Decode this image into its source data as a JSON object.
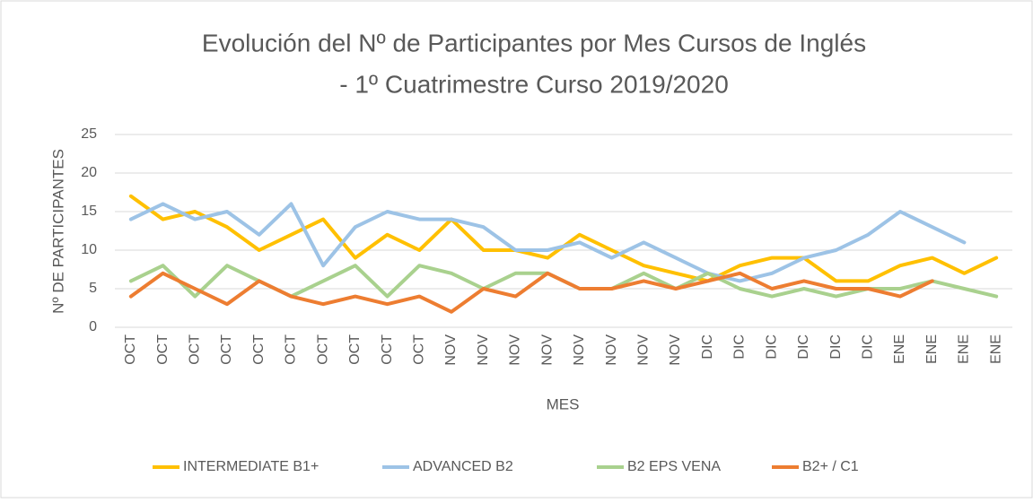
{
  "chart_data": {
    "type": "line",
    "title": "Evolución del Nº de Participantes por Mes Cursos de Inglés",
    "subtitle": "- 1º Cuatrimestre Curso 2019/2020",
    "x_label": "MES",
    "y_label": "Nº DE PARTICIPANTES",
    "categories": [
      "OCT",
      "OCT",
      "OCT",
      "OCT",
      "OCT",
      "OCT",
      "OCT",
      "OCT",
      "OCT",
      "OCT",
      "NOV",
      "NOV",
      "NOV",
      "NOV",
      "NOV",
      "NOV",
      "NOV",
      "NOV",
      "DIC",
      "DIC",
      "DIC",
      "DIC",
      "DIC",
      "DIC",
      "ENE",
      "ENE",
      "ENE",
      "ENE"
    ],
    "series": [
      {
        "name": "INTERMEDIATE B1+",
        "color": "#ffc000",
        "values": [
          17,
          14,
          15,
          13,
          10,
          12,
          14,
          9,
          12,
          10,
          14,
          10,
          10,
          9,
          12,
          10,
          8,
          7,
          6,
          8,
          9,
          9,
          6,
          6,
          8,
          9,
          7,
          9
        ]
      },
      {
        "name": "ADVANCED B2",
        "color": "#9dc3e6",
        "values": [
          14,
          16,
          14,
          15,
          12,
          16,
          8,
          13,
          15,
          14,
          14,
          13,
          10,
          10,
          11,
          9,
          11,
          9,
          7,
          6,
          7,
          9,
          10,
          12,
          15,
          13,
          11,
          null
        ]
      },
      {
        "name": "B2 EPS VENA",
        "color": "#a9d18e",
        "values": [
          6,
          8,
          4,
          8,
          6,
          4,
          6,
          8,
          4,
          8,
          7,
          5,
          7,
          7,
          5,
          5,
          7,
          5,
          7,
          5,
          4,
          5,
          4,
          5,
          5,
          6,
          5,
          4
        ]
      },
      {
        "name": "B2+ / C1",
        "color": "#ed7d31",
        "values": [
          4,
          7,
          5,
          3,
          6,
          4,
          3,
          4,
          3,
          4,
          2,
          5,
          4,
          7,
          5,
          5,
          6,
          5,
          6,
          7,
          5,
          6,
          5,
          5,
          4,
          6,
          null,
          null
        ]
      }
    ],
    "ylim": [
      0,
      25
    ],
    "yticks": [
      0,
      5,
      10,
      15,
      20,
      25
    ],
    "grid": true,
    "legend": "bottom"
  }
}
